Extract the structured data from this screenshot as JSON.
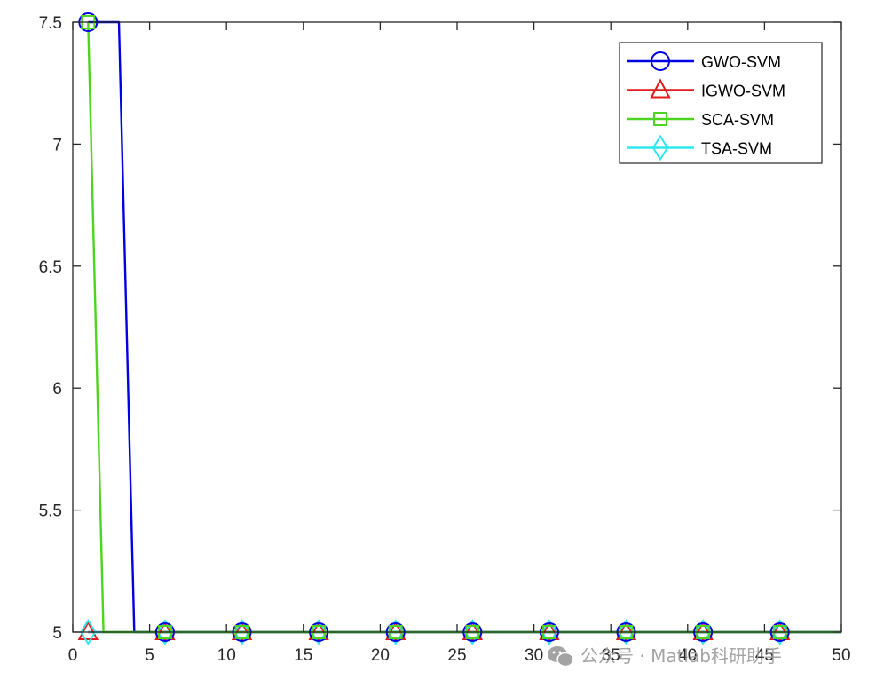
{
  "chart_data": {
    "type": "line",
    "title": "",
    "xlabel": "",
    "ylabel": "",
    "xlim": [
      0,
      50
    ],
    "ylim": [
      5,
      7.5
    ],
    "x_ticks": [
      "0",
      "5",
      "10",
      "15",
      "20",
      "25",
      "30",
      "35",
      "40",
      "45",
      "50"
    ],
    "y_ticks": [
      "5",
      "5.5",
      "6",
      "6.5",
      "7",
      "7.5"
    ],
    "grid": false,
    "legend_position": "top-right",
    "x": [
      1,
      2,
      3,
      4,
      5,
      6,
      7,
      8,
      9,
      10,
      11,
      12,
      13,
      14,
      15,
      16,
      17,
      18,
      19,
      20,
      21,
      22,
      23,
      24,
      25,
      26,
      27,
      28,
      29,
      30,
      31,
      32,
      33,
      34,
      35,
      36,
      37,
      38,
      39,
      40,
      41,
      42,
      43,
      44,
      45,
      46,
      47,
      48,
      49,
      50
    ],
    "marker_x": [
      1,
      6,
      11,
      16,
      21,
      26,
      31,
      36,
      41,
      46
    ],
    "series": [
      {
        "name": "GWO-SVM",
        "color": "#0000e0",
        "marker": "circle",
        "values": [
          7.5,
          7.5,
          7.5,
          5,
          5,
          5,
          5,
          5,
          5,
          5,
          5,
          5,
          5,
          5,
          5,
          5,
          5,
          5,
          5,
          5,
          5,
          5,
          5,
          5,
          5,
          5,
          5,
          5,
          5,
          5,
          5,
          5,
          5,
          5,
          5,
          5,
          5,
          5,
          5,
          5,
          5,
          5,
          5,
          5,
          5,
          5,
          5,
          5,
          5,
          5
        ]
      },
      {
        "name": "IGWO-SVM",
        "color": "#e01a1a",
        "marker": "triangle",
        "values": [
          5,
          5,
          5,
          5,
          5,
          5,
          5,
          5,
          5,
          5,
          5,
          5,
          5,
          5,
          5,
          5,
          5,
          5,
          5,
          5,
          5,
          5,
          5,
          5,
          5,
          5,
          5,
          5,
          5,
          5,
          5,
          5,
          5,
          5,
          5,
          5,
          5,
          5,
          5,
          5,
          5,
          5,
          5,
          5,
          5,
          5,
          5,
          5,
          5,
          5
        ]
      },
      {
        "name": "SCA-SVM",
        "color": "#4ed41e",
        "marker": "square",
        "values": [
          7.5,
          5,
          5,
          5,
          5,
          5,
          5,
          5,
          5,
          5,
          5,
          5,
          5,
          5,
          5,
          5,
          5,
          5,
          5,
          5,
          5,
          5,
          5,
          5,
          5,
          5,
          5,
          5,
          5,
          5,
          5,
          5,
          5,
          5,
          5,
          5,
          5,
          5,
          5,
          5,
          5,
          5,
          5,
          5,
          5,
          5,
          5,
          5,
          5,
          5
        ]
      },
      {
        "name": "TSA-SVM",
        "color": "#2ee6f0",
        "marker": "diamond",
        "values": [
          5,
          5,
          5,
          5,
          5,
          5,
          5,
          5,
          5,
          5,
          5,
          5,
          5,
          5,
          5,
          5,
          5,
          5,
          5,
          5,
          5,
          5,
          5,
          5,
          5,
          5,
          5,
          5,
          5,
          5,
          5,
          5,
          5,
          5,
          5,
          5,
          5,
          5,
          5,
          5,
          5,
          5,
          5,
          5,
          5,
          5,
          5,
          5,
          5,
          5
        ]
      }
    ]
  },
  "watermark": {
    "text": "公众号 · Matlab科研助手",
    "icon": "wechat-icon"
  }
}
